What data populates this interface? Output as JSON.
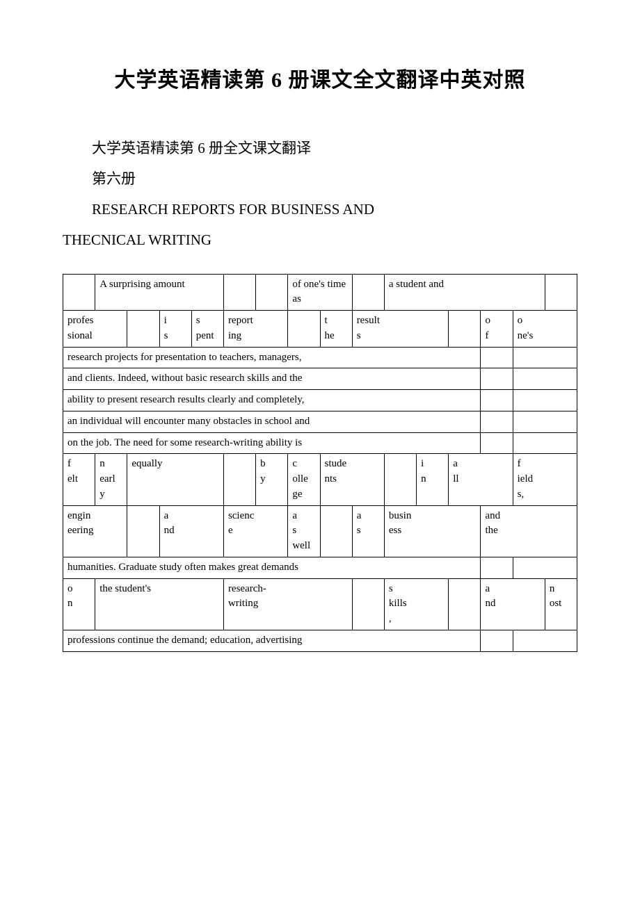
{
  "title": "大学英语精读第 6 册课文全文翻译中英对照",
  "paragraphs": [
    "大学英语精读第 6 册全文课文翻译",
    "第六册",
    "RESEARCH REPORTS FOR BUSINESS AND",
    "THECNICAL WRITING"
  ],
  "table": {
    "border_color": "#000000",
    "font_size": 15,
    "rows": [
      {
        "cells": [
          {
            "text": "",
            "colspan": 1
          },
          {
            "text": "       A surprising amount",
            "colspan": 4
          },
          {
            "text": "",
            "colspan": 1
          },
          {
            "text": "",
            "colspan": 1
          },
          {
            "text": "       of one's time as",
            "colspan": 2
          },
          {
            "text": "",
            "colspan": 1
          },
          {
            "text": "       a student and",
            "colspan": 5
          },
          {
            "text": "",
            "colspan": 1
          }
        ]
      },
      {
        "cells": [
          {
            "text": "      profes\nsional",
            "colspan": 2
          },
          {
            "text": "",
            "colspan": 1
          },
          {
            "text": "         i\ns",
            "colspan": 1
          },
          {
            "text": "         s\npent",
            "colspan": 1
          },
          {
            "text": "       report\ning",
            "colspan": 2
          },
          {
            "text": "",
            "colspan": 1
          },
          {
            "text": "         t\nhe",
            "colspan": 1
          },
          {
            "text": "       result\ns",
            "colspan": 3
          },
          {
            "text": "",
            "colspan": 1
          },
          {
            "text": "         o\nf",
            "colspan": 1
          },
          {
            "text": "         o\nne's",
            "colspan": 2
          }
        ]
      },
      {
        "cells": [
          {
            "text": "      research projects for presentation to teachers, managers,",
            "colspan": 13
          },
          {
            "text": "",
            "colspan": 1
          },
          {
            "text": "",
            "colspan": 2
          }
        ]
      },
      {
        "cells": [
          {
            "text": "      and clients. Indeed, without basic research skills and the",
            "colspan": 13
          },
          {
            "text": "",
            "colspan": 1
          },
          {
            "text": "",
            "colspan": 2
          }
        ]
      },
      {
        "cells": [
          {
            "text": "      ability to present research results clearly and completely,",
            "colspan": 13
          },
          {
            "text": "",
            "colspan": 1
          },
          {
            "text": "",
            "colspan": 2
          }
        ]
      },
      {
        "cells": [
          {
            "text": "      an individual will encounter many obstacles in school and",
            "colspan": 13
          },
          {
            "text": "",
            "colspan": 1
          },
          {
            "text": "",
            "colspan": 2
          }
        ]
      },
      {
        "cells": [
          {
            "text": "      on the job. The need for some research-writing ability is",
            "colspan": 13
          },
          {
            "text": "",
            "colspan": 1
          },
          {
            "text": "",
            "colspan": 2
          }
        ]
      },
      {
        "cells": [
          {
            "text": "      f\nelt",
            "colspan": 1
          },
          {
            "text": "       n\nearl\ny",
            "colspan": 1
          },
          {
            "text": "       equally",
            "colspan": 3
          },
          {
            "text": "",
            "colspan": 1
          },
          {
            "text": "         b\ny",
            "colspan": 1
          },
          {
            "text": "         c\nolle\nge",
            "colspan": 1
          },
          {
            "text": "       stude\nnts",
            "colspan": 2
          },
          {
            "text": "",
            "colspan": 1
          },
          {
            "text": "         i\nn",
            "colspan": 1
          },
          {
            "text": "         a\nll",
            "colspan": 2
          },
          {
            "text": "         f\nield\ns,",
            "colspan": 2
          }
        ]
      },
      {
        "cells": [
          {
            "text": "      engin\neering",
            "colspan": 2
          },
          {
            "text": "",
            "colspan": 1
          },
          {
            "text": "         a\nnd",
            "colspan": 2
          },
          {
            "text": "       scienc\ne",
            "colspan": 2
          },
          {
            "text": "         a\ns\nwell",
            "colspan": 1
          },
          {
            "text": "",
            "colspan": 1
          },
          {
            "text": "         a\ns",
            "colspan": 1
          },
          {
            "text": "       busin\ness",
            "colspan": 3
          },
          {
            "text": "       and\nthe",
            "colspan": 3
          }
        ]
      },
      {
        "cells": [
          {
            "text": "      humanities. Graduate study often makes great demands",
            "colspan": 13
          },
          {
            "text": "",
            "colspan": 1
          },
          {
            "text": "",
            "colspan": 2
          }
        ]
      },
      {
        "cells": [
          {
            "text": "      o\nn",
            "colspan": 1
          },
          {
            "text": "       the student's",
            "colspan": 4
          },
          {
            "text": "       research-\nwriting",
            "colspan": 4
          },
          {
            "text": "",
            "colspan": 1
          },
          {
            "text": "       s\nkills\n,",
            "colspan": 2
          },
          {
            "text": "",
            "colspan": 1
          },
          {
            "text": "         a\nnd",
            "colspan": 2
          },
          {
            "text": "         n\nost",
            "colspan": 1
          }
        ]
      },
      {
        "cells": [
          {
            "text": "      professions continue the demand; education, advertising",
            "colspan": 13
          },
          {
            "text": "",
            "colspan": 1
          },
          {
            "text": "",
            "colspan": 2
          }
        ]
      }
    ]
  }
}
